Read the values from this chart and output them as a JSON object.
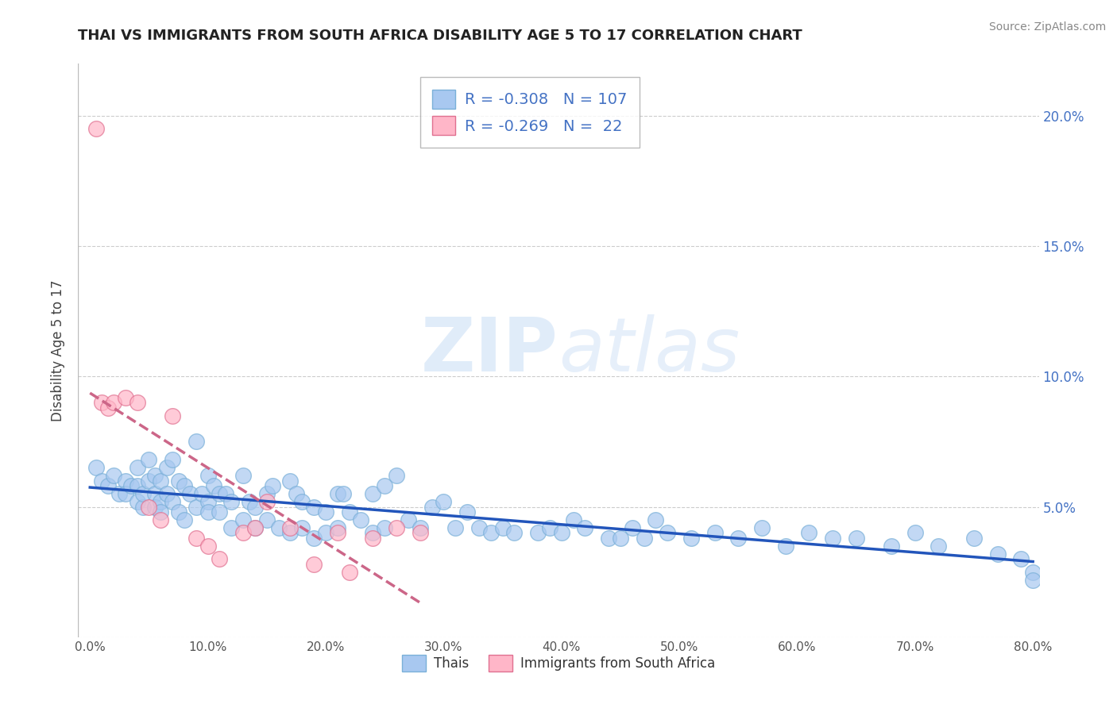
{
  "title": "THAI VS IMMIGRANTS FROM SOUTH AFRICA DISABILITY AGE 5 TO 17 CORRELATION CHART",
  "source": "Source: ZipAtlas.com",
  "ylabel": "Disability Age 5 to 17",
  "xlim": [
    0.0,
    0.8
  ],
  "ylim": [
    0.0,
    0.22
  ],
  "xticks": [
    0.0,
    0.1,
    0.2,
    0.3,
    0.4,
    0.5,
    0.6,
    0.7,
    0.8
  ],
  "yticks": [
    0.0,
    0.05,
    0.1,
    0.15,
    0.2
  ],
  "ytick_labels_right": [
    "",
    "5.0%",
    "10.0%",
    "15.0%",
    "20.0%"
  ],
  "xtick_labels": [
    "0.0%",
    "10.0%",
    "20.0%",
    "30.0%",
    "40.0%",
    "50.0%",
    "60.0%",
    "70.0%",
    "80.0%"
  ],
  "grid_color": "#cccccc",
  "thai_color": "#a8c8f0",
  "thai_edge_color": "#7ab0d8",
  "sa_color": "#ffb6c8",
  "sa_edge_color": "#e07090",
  "thai_line_color": "#2255bb",
  "sa_line_color": "#cc6688",
  "legend_R1": "-0.308",
  "legend_N1": "107",
  "legend_R2": "-0.269",
  "legend_N2": "22",
  "legend_color": "#4472c4",
  "thai_label": "Thais",
  "sa_label": "Immigrants from South Africa",
  "thai_scatter_x": [
    0.005,
    0.01,
    0.015,
    0.02,
    0.025,
    0.03,
    0.03,
    0.035,
    0.04,
    0.04,
    0.04,
    0.045,
    0.045,
    0.05,
    0.05,
    0.055,
    0.055,
    0.055,
    0.06,
    0.06,
    0.06,
    0.065,
    0.065,
    0.07,
    0.07,
    0.075,
    0.075,
    0.08,
    0.08,
    0.085,
    0.09,
    0.09,
    0.095,
    0.1,
    0.1,
    0.1,
    0.105,
    0.11,
    0.11,
    0.115,
    0.12,
    0.12,
    0.13,
    0.13,
    0.135,
    0.14,
    0.14,
    0.15,
    0.15,
    0.155,
    0.16,
    0.17,
    0.17,
    0.175,
    0.18,
    0.18,
    0.19,
    0.19,
    0.2,
    0.2,
    0.21,
    0.21,
    0.215,
    0.22,
    0.23,
    0.24,
    0.24,
    0.25,
    0.25,
    0.26,
    0.27,
    0.28,
    0.29,
    0.3,
    0.31,
    0.32,
    0.33,
    0.34,
    0.35,
    0.36,
    0.38,
    0.39,
    0.4,
    0.41,
    0.42,
    0.44,
    0.45,
    0.46,
    0.47,
    0.48,
    0.49,
    0.51,
    0.53,
    0.55,
    0.57,
    0.59,
    0.61,
    0.63,
    0.65,
    0.68,
    0.7,
    0.72,
    0.75,
    0.77,
    0.79,
    0.8,
    0.8
  ],
  "thai_scatter_y": [
    0.065,
    0.06,
    0.058,
    0.062,
    0.055,
    0.06,
    0.055,
    0.058,
    0.052,
    0.058,
    0.065,
    0.05,
    0.055,
    0.068,
    0.06,
    0.062,
    0.055,
    0.05,
    0.052,
    0.06,
    0.048,
    0.065,
    0.055,
    0.068,
    0.052,
    0.06,
    0.048,
    0.058,
    0.045,
    0.055,
    0.075,
    0.05,
    0.055,
    0.062,
    0.052,
    0.048,
    0.058,
    0.055,
    0.048,
    0.055,
    0.052,
    0.042,
    0.062,
    0.045,
    0.052,
    0.05,
    0.042,
    0.055,
    0.045,
    0.058,
    0.042,
    0.06,
    0.04,
    0.055,
    0.052,
    0.042,
    0.05,
    0.038,
    0.048,
    0.04,
    0.055,
    0.042,
    0.055,
    0.048,
    0.045,
    0.055,
    0.04,
    0.058,
    0.042,
    0.062,
    0.045,
    0.042,
    0.05,
    0.052,
    0.042,
    0.048,
    0.042,
    0.04,
    0.042,
    0.04,
    0.04,
    0.042,
    0.04,
    0.045,
    0.042,
    0.038,
    0.038,
    0.042,
    0.038,
    0.045,
    0.04,
    0.038,
    0.04,
    0.038,
    0.042,
    0.035,
    0.04,
    0.038,
    0.038,
    0.035,
    0.04,
    0.035,
    0.038,
    0.032,
    0.03,
    0.025,
    0.022
  ],
  "sa_scatter_x": [
    0.005,
    0.01,
    0.015,
    0.02,
    0.03,
    0.04,
    0.05,
    0.06,
    0.07,
    0.09,
    0.1,
    0.11,
    0.13,
    0.14,
    0.15,
    0.17,
    0.19,
    0.21,
    0.22,
    0.24,
    0.26,
    0.28
  ],
  "sa_scatter_y": [
    0.195,
    0.09,
    0.088,
    0.09,
    0.092,
    0.09,
    0.05,
    0.045,
    0.085,
    0.038,
    0.035,
    0.03,
    0.04,
    0.042,
    0.052,
    0.042,
    0.028,
    0.04,
    0.025,
    0.038,
    0.042,
    0.04
  ]
}
